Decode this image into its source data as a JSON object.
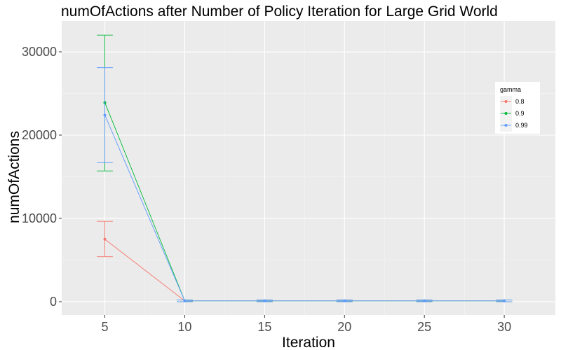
{
  "chart_data": {
    "type": "line",
    "title": "numOfActions after Number of Policy Iteration for Large Grid World",
    "xlabel": "Iteration",
    "ylabel": "numOfActions",
    "xlim": [
      2.3,
      33.2
    ],
    "ylim": [
      -1600,
      33700
    ],
    "x_ticks": [
      5,
      10,
      15,
      20,
      25,
      30
    ],
    "y_ticks": [
      0,
      10000,
      20000,
      30000
    ],
    "x_tick_labels": [
      "5",
      "10",
      "15",
      "20",
      "25",
      "30"
    ],
    "y_tick_labels": [
      "0",
      "10000",
      "20000",
      "30000"
    ],
    "grid": true,
    "legend": {
      "title": "gamma",
      "position": "right"
    },
    "series": [
      {
        "name": "0.8",
        "color": "#F8766D",
        "x": [
          5,
          10,
          15,
          20,
          25,
          30
        ],
        "y": [
          7500,
          100,
          100,
          100,
          100,
          100
        ],
        "err_low": [
          5400,
          0,
          0,
          0,
          0,
          0
        ],
        "err_high": [
          9650,
          200,
          200,
          200,
          200,
          200
        ]
      },
      {
        "name": "0.9",
        "color": "#00BA38",
        "x": [
          5,
          10,
          15,
          20,
          25,
          30
        ],
        "y": [
          23900,
          100,
          100,
          100,
          100,
          100
        ],
        "err_low": [
          15700,
          0,
          0,
          0,
          0,
          0
        ],
        "err_high": [
          32000,
          200,
          200,
          200,
          200,
          200
        ]
      },
      {
        "name": "0.99",
        "color": "#619CFF",
        "x": [
          5,
          10,
          15,
          20,
          25,
          30
        ],
        "y": [
          22400,
          100,
          100,
          100,
          100,
          100
        ],
        "err_low": [
          16700,
          0,
          0,
          0,
          0,
          0
        ],
        "err_high": [
          28100,
          200,
          200,
          200,
          200,
          200
        ]
      }
    ]
  }
}
